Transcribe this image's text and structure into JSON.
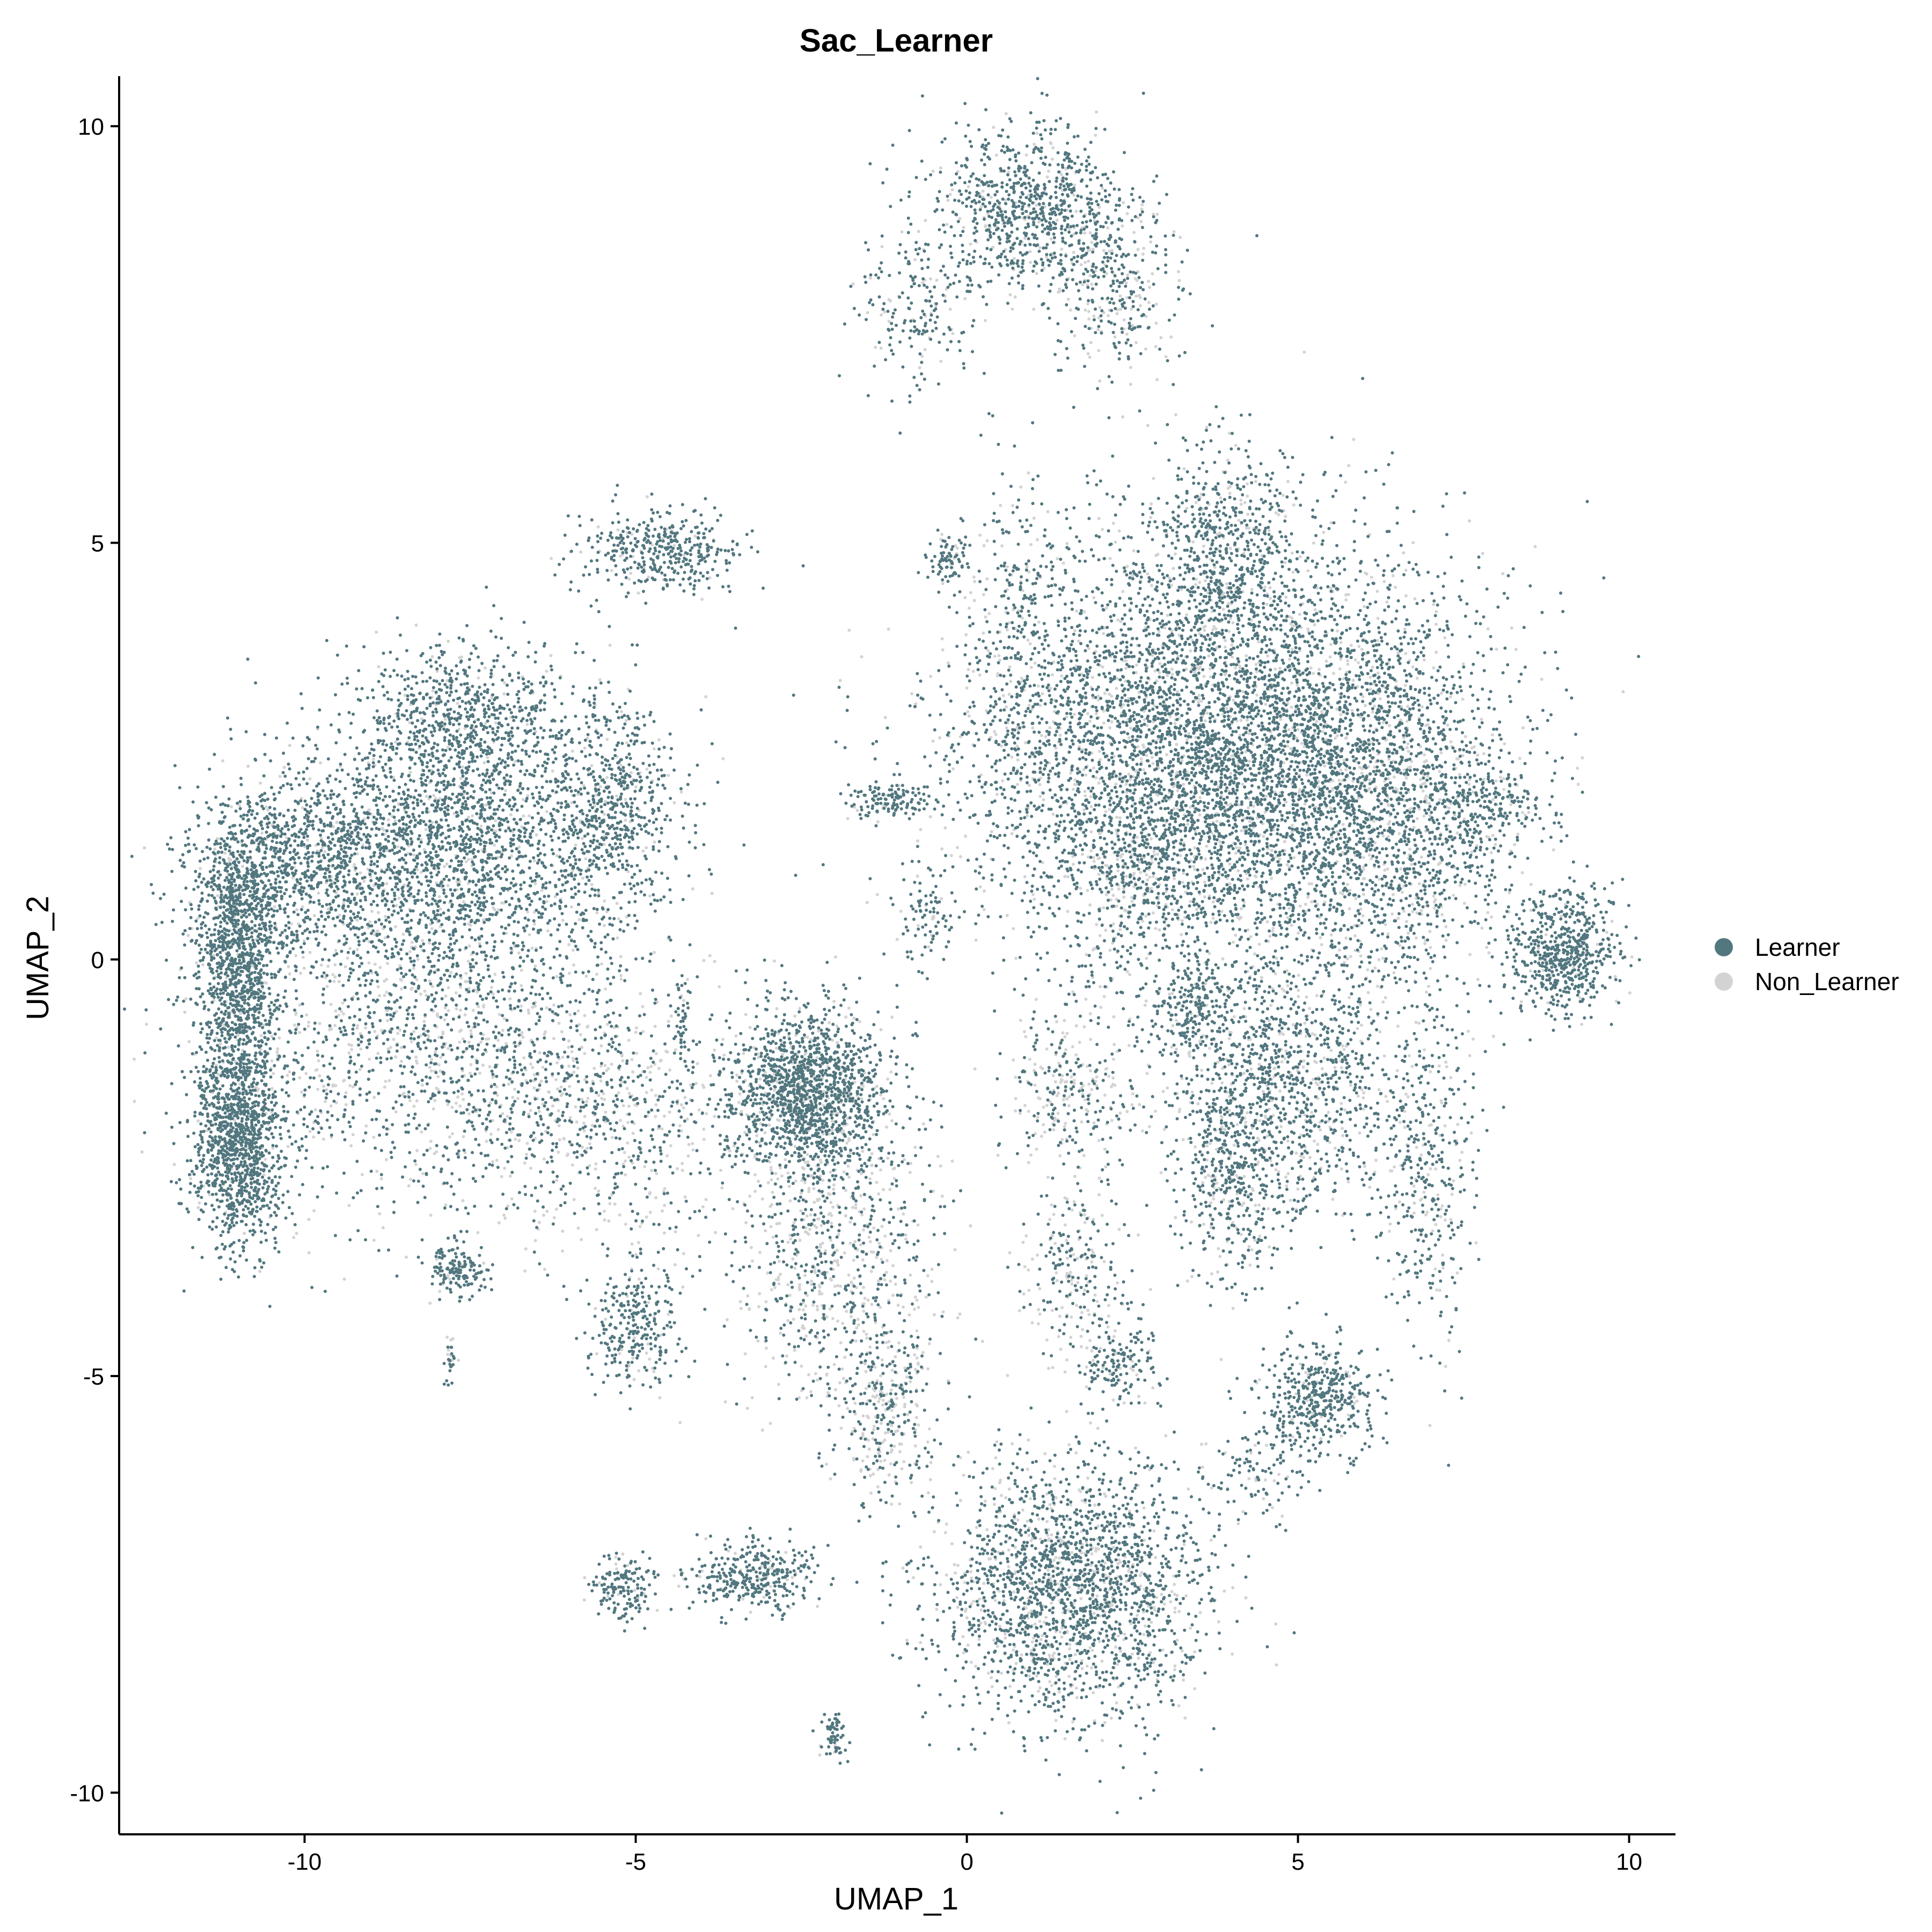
{
  "chart_data": {
    "type": "scatter",
    "title": "Sac_Learner",
    "xlabel": "UMAP_1",
    "ylabel": "UMAP_2",
    "xlim": [
      -12.8,
      10.7
    ],
    "ylim": [
      -10.5,
      10.6
    ],
    "xticks": [
      -10,
      -5,
      0,
      5,
      10
    ],
    "yticks": [
      -10,
      -5,
      0,
      5,
      10
    ],
    "xtick_labels": [
      "-10",
      "-5",
      "0",
      "5",
      "10"
    ],
    "ytick_labels": [
      "-10",
      "-5",
      "0",
      "5",
      "10"
    ],
    "grid": false,
    "legend_position": "right",
    "series": [
      {
        "name": "Learner",
        "color": "#52777f"
      },
      {
        "name": "Non_Learner",
        "color": "#d3d3d3"
      }
    ],
    "clusters": [
      {
        "cx": -11.0,
        "cy": -2.3,
        "sx": 0.35,
        "sy": 0.55,
        "learner": 0.95,
        "density": 900
      },
      {
        "cx": -11.0,
        "cy": -0.8,
        "sx": 0.3,
        "sy": 1.0,
        "learner": 0.93,
        "density": 900
      },
      {
        "cx": -11.0,
        "cy": 0.5,
        "sx": 0.35,
        "sy": 0.6,
        "learner": 0.92,
        "density": 700
      },
      {
        "cx": -9.8,
        "cy": 1.2,
        "sx": 0.9,
        "sy": 0.5,
        "learner": 0.9,
        "density": 900
      },
      {
        "cx": -7.5,
        "cy": 1.5,
        "sx": 1.3,
        "sy": 0.9,
        "learner": 0.88,
        "density": 2200
      },
      {
        "cx": -7.6,
        "cy": 3.0,
        "sx": 0.7,
        "sy": 0.4,
        "learner": 0.9,
        "density": 500
      },
      {
        "cx": -5.3,
        "cy": 1.8,
        "sx": 0.4,
        "sy": 0.7,
        "learner": 0.85,
        "density": 500
      },
      {
        "cx": -8.5,
        "cy": -1.0,
        "sx": 1.6,
        "sy": 1.0,
        "learner": 0.7,
        "density": 1500
      },
      {
        "cx": -5.5,
        "cy": -1.8,
        "sx": 1.2,
        "sy": 0.8,
        "learner": 0.6,
        "density": 800
      },
      {
        "cx": -7.7,
        "cy": -3.7,
        "sx": 0.2,
        "sy": 0.15,
        "learner": 0.9,
        "density": 150
      },
      {
        "cx": -7.8,
        "cy": -4.8,
        "sx": 0.05,
        "sy": 0.15,
        "learner": 0.6,
        "density": 30
      },
      {
        "cx": -4.6,
        "cy": 4.9,
        "sx": 0.6,
        "sy": 0.25,
        "learner": 0.9,
        "density": 400
      },
      {
        "cx": -2.4,
        "cy": -1.6,
        "sx": 0.6,
        "sy": 0.5,
        "learner": 0.85,
        "density": 1500
      },
      {
        "cx": -2.0,
        "cy": -3.5,
        "sx": 0.8,
        "sy": 1.0,
        "learner": 0.55,
        "density": 900
      },
      {
        "cx": -1.2,
        "cy": -5.5,
        "sx": 0.4,
        "sy": 0.6,
        "learner": 0.55,
        "density": 300
      },
      {
        "cx": -5.0,
        "cy": -4.4,
        "sx": 0.35,
        "sy": 0.4,
        "learner": 0.85,
        "density": 300
      },
      {
        "cx": -3.2,
        "cy": -7.4,
        "sx": 0.5,
        "sy": 0.2,
        "learner": 0.9,
        "density": 350
      },
      {
        "cx": -5.2,
        "cy": -7.5,
        "sx": 0.25,
        "sy": 0.2,
        "learner": 0.9,
        "density": 150
      },
      {
        "cx": -2.0,
        "cy": -9.3,
        "sx": 0.1,
        "sy": 0.15,
        "learner": 0.9,
        "density": 60
      },
      {
        "cx": 1.0,
        "cy": 9.0,
        "sx": 0.8,
        "sy": 0.5,
        "learner": 0.85,
        "density": 900
      },
      {
        "cx": 2.2,
        "cy": 8.0,
        "sx": 0.5,
        "sy": 0.5,
        "learner": 0.7,
        "density": 300
      },
      {
        "cx": -0.8,
        "cy": 7.8,
        "sx": 0.4,
        "sy": 0.5,
        "learner": 0.85,
        "density": 200
      },
      {
        "cx": 3.5,
        "cy": 2.5,
        "sx": 1.8,
        "sy": 1.3,
        "learner": 0.82,
        "density": 5500
      },
      {
        "cx": 6.0,
        "cy": 2.0,
        "sx": 1.2,
        "sy": 1.2,
        "learner": 0.8,
        "density": 2200
      },
      {
        "cx": 3.9,
        "cy": 5.0,
        "sx": 0.5,
        "sy": 0.6,
        "learner": 0.85,
        "density": 500
      },
      {
        "cx": 9.0,
        "cy": 0.1,
        "sx": 0.4,
        "sy": 0.35,
        "learner": 0.92,
        "density": 600
      },
      {
        "cx": -1.2,
        "cy": 1.9,
        "sx": 0.3,
        "sy": 0.1,
        "learner": 0.9,
        "density": 120
      },
      {
        "cx": -0.3,
        "cy": 4.8,
        "sx": 0.15,
        "sy": 0.15,
        "learner": 0.9,
        "density": 80
      },
      {
        "cx": 3.4,
        "cy": -0.6,
        "sx": 0.3,
        "sy": 0.3,
        "learner": 0.9,
        "density": 200
      },
      {
        "cx": 4.8,
        "cy": -1.5,
        "sx": 0.9,
        "sy": 0.8,
        "learner": 0.8,
        "density": 1200
      },
      {
        "cx": 4.0,
        "cy": -2.6,
        "sx": 0.4,
        "sy": 0.7,
        "learner": 0.8,
        "density": 400
      },
      {
        "cx": 6.9,
        "cy": -2.5,
        "sx": 0.4,
        "sy": 1.0,
        "learner": 0.8,
        "density": 400
      },
      {
        "cx": 1.6,
        "cy": -1.6,
        "sx": 0.5,
        "sy": 0.5,
        "learner": 0.5,
        "density": 300
      },
      {
        "cx": 1.6,
        "cy": -3.8,
        "sx": 0.4,
        "sy": 0.6,
        "learner": 0.6,
        "density": 250
      },
      {
        "cx": 2.3,
        "cy": -4.9,
        "sx": 0.3,
        "sy": 0.25,
        "learner": 0.85,
        "density": 150
      },
      {
        "cx": 5.3,
        "cy": -5.3,
        "sx": 0.4,
        "sy": 0.3,
        "learner": 0.9,
        "density": 450
      },
      {
        "cx": 4.4,
        "cy": -6.1,
        "sx": 0.4,
        "sy": 0.3,
        "learner": 0.75,
        "density": 120
      },
      {
        "cx": 1.6,
        "cy": -7.6,
        "sx": 1.0,
        "sy": 0.8,
        "learner": 0.8,
        "density": 2200
      },
      {
        "cx": 2.5,
        "cy": 1.0,
        "sx": 0.4,
        "sy": 0.5,
        "learner": 0.6,
        "density": 300
      },
      {
        "cx": 7.8,
        "cy": 1.8,
        "sx": 0.5,
        "sy": 0.3,
        "learner": 0.85,
        "density": 200
      },
      {
        "cx": 0.8,
        "cy": 4.0,
        "sx": 0.4,
        "sy": 0.9,
        "learner": 0.8,
        "density": 250
      },
      {
        "cx": -0.6,
        "cy": 0.5,
        "sx": 0.2,
        "sy": 0.3,
        "learner": 0.8,
        "density": 80
      },
      {
        "cx": -4.3,
        "cy": -0.8,
        "sx": 0.05,
        "sy": 0.3,
        "learner": 0.9,
        "density": 40
      }
    ]
  }
}
